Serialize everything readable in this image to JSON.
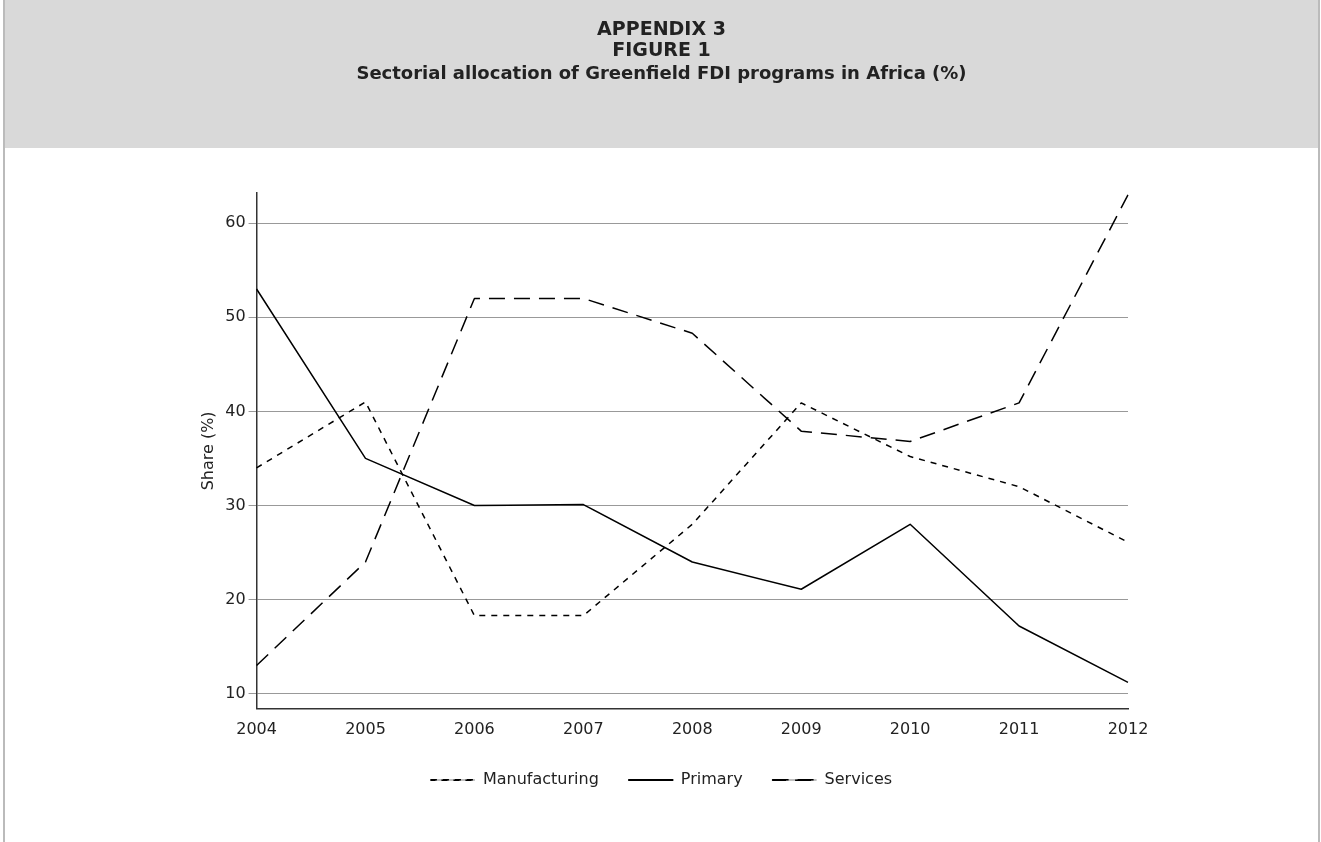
{
  "chart_data": {
    "type": "line",
    "title": "APPENDIX 3\nFIGURE 1",
    "subtitle": "Sectorial allocation of Greenfield FDI programs in Africa (%)",
    "ylabel": "Share (%)",
    "categories": [
      "2004",
      "2005",
      "2006",
      "2007",
      "2008",
      "2009",
      "2010",
      "2011",
      "2012"
    ],
    "series": [
      {
        "name": "Manufacturing",
        "color": "#000000",
        "line_style": "dotted",
        "values": [
          34,
          41,
          18.3,
          18.3,
          28,
          40.9,
          35.2,
          32,
          26.1
        ]
      },
      {
        "name": "Primary",
        "color": "#000000",
        "line_style": "solid",
        "values": [
          53,
          35,
          30,
          30.1,
          24,
          21.1,
          28,
          17.2,
          11.2
        ]
      },
      {
        "name": "Services",
        "color": "#000000",
        "line_style": "dashed",
        "values": [
          13,
          24,
          52,
          52,
          48.3,
          37.9,
          36.8,
          40.9,
          63
        ]
      }
    ],
    "ylim": [
      8.4,
      63.2
    ],
    "yticks": [
      10,
      20,
      30,
      40,
      50,
      60
    ],
    "grid": "y",
    "legend": "bottom",
    "marker": "none"
  }
}
